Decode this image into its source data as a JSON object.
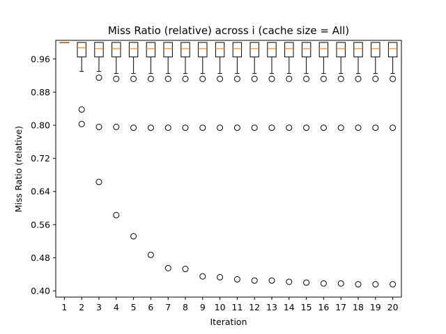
{
  "chart_data": {
    "type": "box",
    "title": "Miss Ratio (relative) across i (cache size = All)",
    "xlabel": "Iteration",
    "ylabel": "Miss Ratio (relative)",
    "categories": [
      "1",
      "2",
      "3",
      "4",
      "5",
      "6",
      "7",
      "8",
      "9",
      "10",
      "11",
      "12",
      "13",
      "14",
      "15",
      "16",
      "17",
      "18",
      "19",
      "20"
    ],
    "yticks": [
      "0.40",
      "0.48",
      "0.56",
      "0.64",
      "0.72",
      "0.80",
      "0.88",
      "0.96"
    ],
    "ylim": [
      0.385,
      1.005
    ],
    "grid": false,
    "boxes": [
      {
        "category": "1",
        "whisker_low": 1.0,
        "q1": 1.0,
        "median": 1.0,
        "q3": 1.0,
        "whisker_high": 1.0,
        "fliers": []
      },
      {
        "category": "2",
        "whisker_low": 0.93,
        "q1": 0.965,
        "median": 0.987,
        "q3": 1.0,
        "whisker_high": 1.0,
        "fliers": [
          0.838,
          0.803
        ]
      },
      {
        "category": "3",
        "whisker_low": 0.93,
        "q1": 0.965,
        "median": 0.985,
        "q3": 1.0,
        "whisker_high": 1.0,
        "fliers": [
          0.915,
          0.796,
          0.663
        ]
      },
      {
        "category": "4",
        "whisker_low": 0.925,
        "q1": 0.965,
        "median": 0.985,
        "q3": 1.0,
        "whisker_high": 1.0,
        "fliers": [
          0.912,
          0.796,
          0.583
        ]
      },
      {
        "category": "5",
        "whisker_low": 0.925,
        "q1": 0.965,
        "median": 0.985,
        "q3": 1.0,
        "whisker_high": 1.0,
        "fliers": [
          0.912,
          0.794,
          0.532
        ]
      },
      {
        "category": "6",
        "whisker_low": 0.925,
        "q1": 0.965,
        "median": 0.985,
        "q3": 1.0,
        "whisker_high": 1.0,
        "fliers": [
          0.912,
          0.794,
          0.487
        ]
      },
      {
        "category": "7",
        "whisker_low": 0.925,
        "q1": 0.965,
        "median": 0.985,
        "q3": 1.0,
        "whisker_high": 1.0,
        "fliers": [
          0.912,
          0.794,
          0.455
        ]
      },
      {
        "category": "8",
        "whisker_low": 0.925,
        "q1": 0.965,
        "median": 0.985,
        "q3": 1.0,
        "whisker_high": 1.0,
        "fliers": [
          0.912,
          0.794,
          0.453
        ]
      },
      {
        "category": "9",
        "whisker_low": 0.925,
        "q1": 0.965,
        "median": 0.985,
        "q3": 1.0,
        "whisker_high": 1.0,
        "fliers": [
          0.912,
          0.794,
          0.435
        ]
      },
      {
        "category": "10",
        "whisker_low": 0.925,
        "q1": 0.965,
        "median": 0.985,
        "q3": 1.0,
        "whisker_high": 1.0,
        "fliers": [
          0.912,
          0.794,
          0.433
        ]
      },
      {
        "category": "11",
        "whisker_low": 0.925,
        "q1": 0.965,
        "median": 0.985,
        "q3": 1.0,
        "whisker_high": 1.0,
        "fliers": [
          0.912,
          0.794,
          0.428
        ]
      },
      {
        "category": "12",
        "whisker_low": 0.925,
        "q1": 0.965,
        "median": 0.985,
        "q3": 1.0,
        "whisker_high": 1.0,
        "fliers": [
          0.912,
          0.794,
          0.425
        ]
      },
      {
        "category": "13",
        "whisker_low": 0.925,
        "q1": 0.965,
        "median": 0.985,
        "q3": 1.0,
        "whisker_high": 1.0,
        "fliers": [
          0.912,
          0.794,
          0.425
        ]
      },
      {
        "category": "14",
        "whisker_low": 0.925,
        "q1": 0.965,
        "median": 0.985,
        "q3": 1.0,
        "whisker_high": 1.0,
        "fliers": [
          0.912,
          0.794,
          0.422
        ]
      },
      {
        "category": "15",
        "whisker_low": 0.925,
        "q1": 0.965,
        "median": 0.985,
        "q3": 1.0,
        "whisker_high": 1.0,
        "fliers": [
          0.912,
          0.794,
          0.42
        ]
      },
      {
        "category": "16",
        "whisker_low": 0.925,
        "q1": 0.965,
        "median": 0.985,
        "q3": 1.0,
        "whisker_high": 1.0,
        "fliers": [
          0.912,
          0.794,
          0.418
        ]
      },
      {
        "category": "17",
        "whisker_low": 0.925,
        "q1": 0.965,
        "median": 0.985,
        "q3": 1.0,
        "whisker_high": 1.0,
        "fliers": [
          0.912,
          0.794,
          0.418
        ]
      },
      {
        "category": "18",
        "whisker_low": 0.925,
        "q1": 0.965,
        "median": 0.985,
        "q3": 1.0,
        "whisker_high": 1.0,
        "fliers": [
          0.912,
          0.794,
          0.416
        ]
      },
      {
        "category": "19",
        "whisker_low": 0.925,
        "q1": 0.965,
        "median": 0.985,
        "q3": 1.0,
        "whisker_high": 1.0,
        "fliers": [
          0.912,
          0.794,
          0.416
        ]
      },
      {
        "category": "20",
        "whisker_low": 0.925,
        "q1": 0.965,
        "median": 0.985,
        "q3": 1.0,
        "whisker_high": 1.0,
        "fliers": [
          0.912,
          0.794,
          0.416
        ]
      }
    ],
    "colors": {
      "box": "#000000",
      "median": "#ff7f0e",
      "flier": "#000000",
      "background": "#ffffff"
    }
  }
}
